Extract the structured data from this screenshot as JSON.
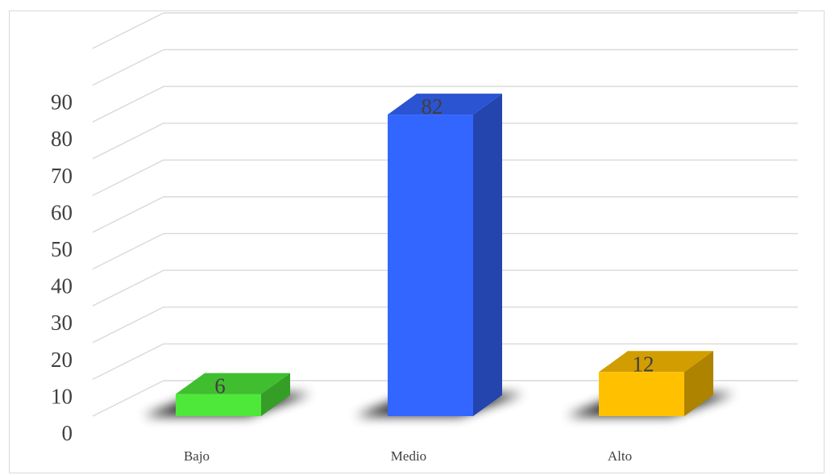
{
  "chart_data": {
    "type": "bar",
    "style": "3d-column",
    "categories": [
      "Bajo",
      "Medio",
      "Alto"
    ],
    "values": [
      6,
      82,
      12
    ],
    "data_labels": [
      "6",
      "82",
      "12"
    ],
    "colors": [
      "#4ee83a",
      "#3366ff",
      "#ffc000"
    ],
    "yticks": [
      "0",
      "10",
      "20",
      "30",
      "40",
      "50",
      "60",
      "70",
      "80",
      "90"
    ],
    "ylim": [
      0,
      100
    ],
    "grid": true,
    "legend": "none"
  }
}
